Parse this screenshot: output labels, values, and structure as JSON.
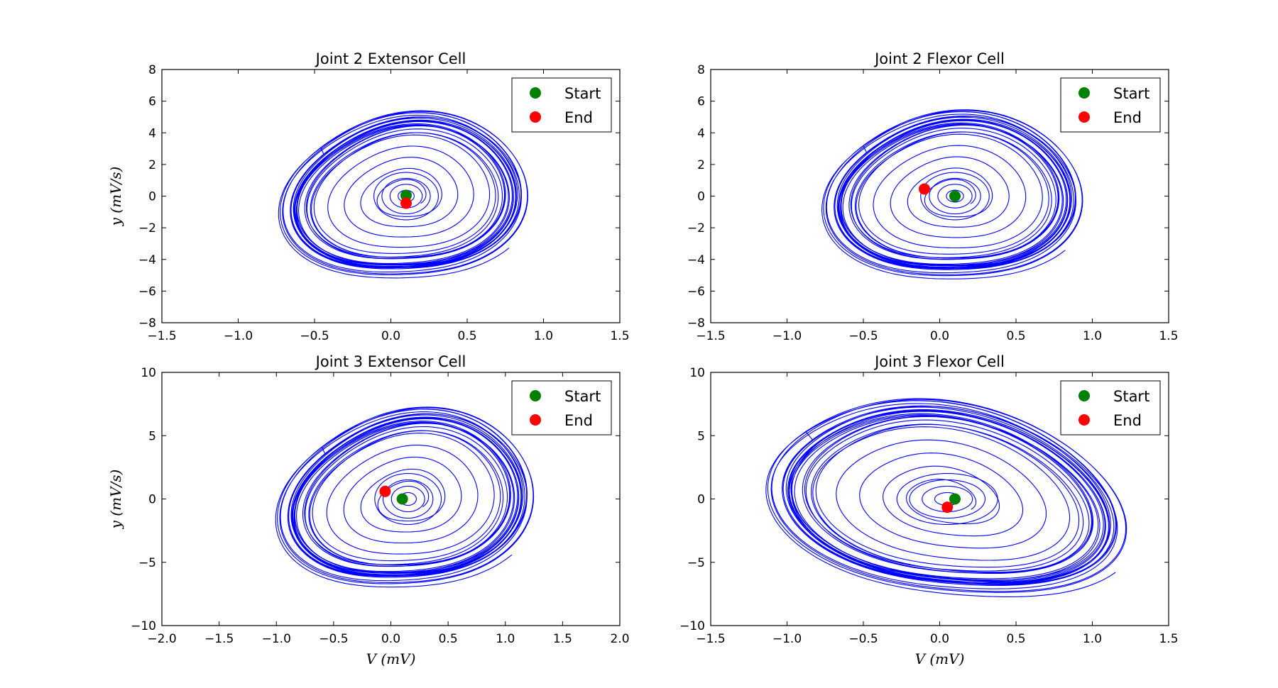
{
  "chart_data": [
    {
      "type": "scatter",
      "title": "Joint 2 Extensor Cell",
      "xlabel": "",
      "ylabel": "y (mV/s)",
      "xlim": [
        -1.5,
        1.5
      ],
      "ylim": [
        -8,
        8
      ],
      "xticks": [
        "−1.5",
        "−1.0",
        "−0.5",
        "0.0",
        "0.5",
        "1.0",
        "1.5"
      ],
      "yticks": [
        "−8",
        "−6",
        "−4",
        "−2",
        "0",
        "2",
        "4",
        "6",
        "8"
      ],
      "legend": {
        "position": "upper right",
        "entries": [
          "Start",
          "End"
        ]
      },
      "line_color": "#0000ff",
      "orbit": {
        "center": [
          0.1,
          0.0
        ],
        "rmax": [
          0.8,
          5.2
        ],
        "tilt": -0.35,
        "rotation_deg": -28
      },
      "points": [
        {
          "name": "Start",
          "x": 0.1,
          "y": 0.05,
          "color": "#008000"
        },
        {
          "name": "End",
          "x": 0.1,
          "y": -0.45,
          "color": "#ff0000"
        }
      ]
    },
    {
      "type": "scatter",
      "title": "Joint 2 Flexor Cell",
      "xlabel": "",
      "ylabel": "",
      "xlim": [
        -1.5,
        1.5
      ],
      "ylim": [
        -8,
        8
      ],
      "xticks": [
        "−1.5",
        "−1.0",
        "−0.5",
        "0.0",
        "0.5",
        "1.0",
        "1.5"
      ],
      "yticks": [
        "−8",
        "−6",
        "−4",
        "−2",
        "0",
        "2",
        "4",
        "6",
        "8"
      ],
      "legend": {
        "position": "upper right",
        "entries": [
          "Start",
          "End"
        ]
      },
      "line_color": "#0000ff",
      "orbit": {
        "center": [
          0.1,
          0.0
        ],
        "rmax": [
          0.85,
          5.2
        ],
        "tilt": -0.35,
        "rotation_deg": -28
      },
      "points": [
        {
          "name": "Start",
          "x": 0.1,
          "y": 0.0,
          "color": "#008000"
        },
        {
          "name": "End",
          "x": -0.1,
          "y": 0.45,
          "color": "#ff0000"
        }
      ]
    },
    {
      "type": "scatter",
      "title": "Joint 3 Extensor Cell",
      "xlabel": "V (mV)",
      "ylabel": "y (mV/s)",
      "xlim": [
        -2.0,
        2.0
      ],
      "ylim": [
        -10,
        10
      ],
      "xticks": [
        "−2.0",
        "−1.5",
        "−1.0",
        "−0.5",
        "0.0",
        "0.5",
        "1.0",
        "1.5",
        "2.0"
      ],
      "yticks": [
        "−10",
        "−5",
        "0",
        "5",
        "10"
      ],
      "legend": {
        "position": "upper right",
        "entries": [
          "Start",
          "End"
        ]
      },
      "line_color": "#0000ff",
      "orbit": {
        "center": [
          0.15,
          0.0
        ],
        "rmax": [
          1.1,
          7.0
        ],
        "tilt": -0.38,
        "rotation_deg": -28
      },
      "points": [
        {
          "name": "Start",
          "x": 0.1,
          "y": 0.0,
          "color": "#008000"
        },
        {
          "name": "End",
          "x": -0.05,
          "y": 0.6,
          "color": "#ff0000"
        }
      ]
    },
    {
      "type": "scatter",
      "title": "Joint 3 Flexor Cell",
      "xlabel": "V (mV)",
      "ylabel": "",
      "xlim": [
        -1.5,
        1.5
      ],
      "ylim": [
        -10,
        10
      ],
      "xticks": [
        "−1.5",
        "−1.0",
        "−0.5",
        "0.0",
        "0.5",
        "1.0",
        "1.5"
      ],
      "yticks": [
        "−10",
        "−5",
        "0",
        "5",
        "10"
      ],
      "legend": {
        "position": "upper right",
        "entries": [
          "Start",
          "End"
        ]
      },
      "line_color": "#0000ff",
      "orbit": {
        "center": [
          0.05,
          0.0
        ],
        "rmax": [
          1.25,
          7.0
        ],
        "tilt": -0.36,
        "rotation_deg": -28
      },
      "points": [
        {
          "name": "Start",
          "x": 0.1,
          "y": 0.0,
          "color": "#008000"
        },
        {
          "name": "End",
          "x": 0.05,
          "y": -0.65,
          "color": "#ff0000"
        }
      ]
    }
  ]
}
